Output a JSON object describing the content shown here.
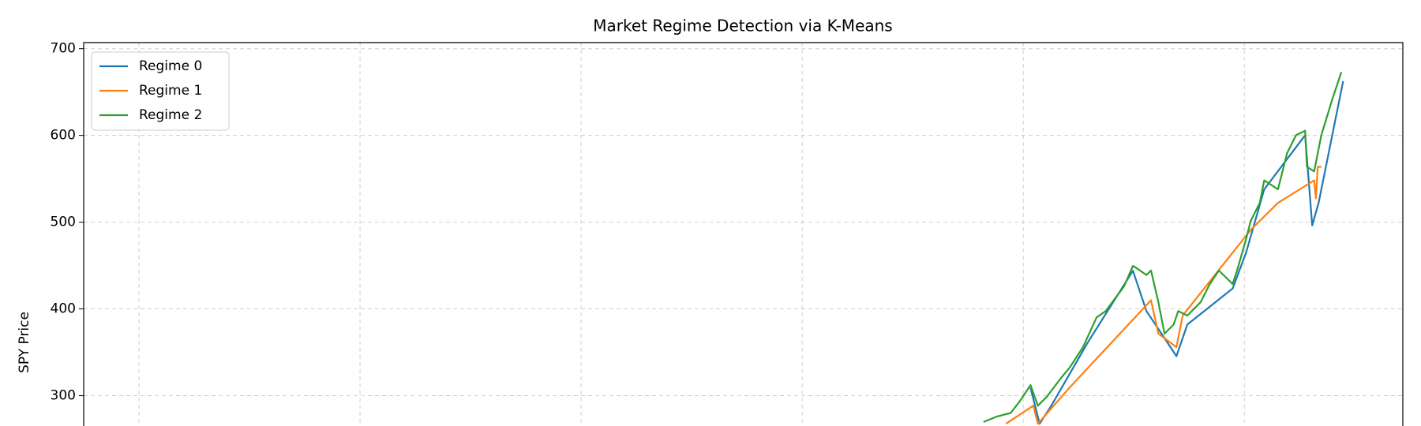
{
  "chart_data": {
    "type": "line",
    "title": "Market Regime Detection via K-Means",
    "ylabel": "SPY Price",
    "xlim": [
      -0.25,
      5.717
    ],
    "xticks": [
      0,
      1,
      2,
      3,
      4,
      5
    ],
    "ylim": [
      265,
      707
    ],
    "yticks": [
      300,
      400,
      500,
      600,
      700
    ],
    "grid": true,
    "legend": "upper left",
    "series": [
      {
        "name": "Regime 0",
        "color": "#1f77b4",
        "x": [
          4.033,
          4.074,
          4.127,
          4.291,
          4.496,
          4.557,
          4.639,
          4.693,
          4.742,
          4.947,
          5.008,
          5.09,
          5.275,
          5.307,
          5.336,
          5.447
        ],
        "values": [
          309,
          267.6,
          288.4,
          361,
          444,
          397.5,
          366.3,
          345.5,
          382,
          423.5,
          465.1,
          537.8,
          600.2,
          496.3,
          522.2,
          662.6
        ]
      },
      {
        "name": "Regime 1",
        "color": "#ff7f0e",
        "x": [
          3.922,
          4.045,
          4.066,
          4.209,
          4.578,
          4.611,
          4.693,
          4.721,
          5.029,
          5.152,
          5.316,
          5.324,
          5.332,
          5.348
        ],
        "values": [
          267.6,
          288.4,
          267.6,
          309.1,
          410,
          371.5,
          355.9,
          392.3,
          491.1,
          522.2,
          548.2,
          527.4,
          563.8,
          563.8
        ]
      },
      {
        "name": "Regime 2",
        "color": "#2ca02c",
        "x": [
          3.82,
          3.881,
          3.943,
          3.984,
          4.033,
          4.066,
          4.107,
          4.168,
          4.209,
          4.27,
          4.332,
          4.373,
          4.455,
          4.496,
          4.516,
          4.557,
          4.578,
          4.611,
          4.639,
          4.68,
          4.701,
          4.742,
          4.803,
          4.844,
          4.885,
          4.947,
          4.967,
          5.008,
          5.029,
          5.07,
          5.09,
          5.152,
          5.193,
          5.234,
          5.275,
          5.283,
          5.316,
          5.348,
          5.398,
          5.439
        ],
        "values": [
          269.6,
          275.9,
          280,
          293.5,
          312.2,
          288.4,
          298.8,
          319.5,
          332,
          355.9,
          390.2,
          397.5,
          425.6,
          449.5,
          446.4,
          439.1,
          444.3,
          408,
          371.5,
          381.9,
          397.5,
          392.3,
          408,
          428.7,
          444.3,
          428.7,
          444.3,
          480.7,
          501.5,
          522.2,
          548.2,
          537.8,
          579.4,
          600.2,
          605.4,
          563.8,
          558.6,
          600.2,
          641.8,
          673
        ]
      }
    ]
  }
}
